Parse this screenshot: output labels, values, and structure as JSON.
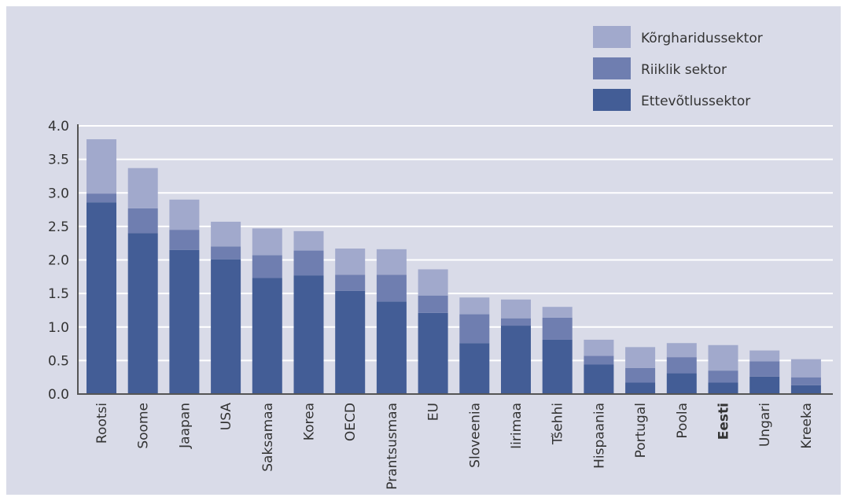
{
  "chart_data": {
    "type": "bar",
    "stacked": true,
    "categories": [
      "Rootsi",
      "Soome",
      "Jaapan",
      "USA",
      "Saksamaa",
      "Korea",
      "OECD",
      "Prantsusmaa",
      "EU",
      "Sloveenia",
      "Iirimaa",
      "Tšehhi",
      "Hispaania",
      "Portugal",
      "Poola",
      "Eesti",
      "Ungari",
      "Kreeka"
    ],
    "highlight_category": "Eesti",
    "series": [
      {
        "name": "Ettevõtlussektor",
        "color": "#435d96",
        "values": [
          2.86,
          2.4,
          2.15,
          2.01,
          1.73,
          1.77,
          1.54,
          1.38,
          1.21,
          0.76,
          1.02,
          0.81,
          0.44,
          0.17,
          0.31,
          0.17,
          0.26,
          0.13
        ]
      },
      {
        "name": "Riiklik sektor",
        "color": "#6f7eb0",
        "values": [
          0.13,
          0.37,
          0.3,
          0.19,
          0.34,
          0.37,
          0.24,
          0.4,
          0.26,
          0.43,
          0.11,
          0.33,
          0.13,
          0.22,
          0.24,
          0.18,
          0.23,
          0.12
        ]
      },
      {
        "name": "Kõrgharidussektor",
        "color": "#a1a9cc",
        "values": [
          0.81,
          0.6,
          0.45,
          0.37,
          0.4,
          0.29,
          0.39,
          0.38,
          0.39,
          0.25,
          0.28,
          0.16,
          0.24,
          0.31,
          0.21,
          0.38,
          0.16,
          0.27
        ]
      }
    ],
    "ylim": [
      0,
      4.0
    ],
    "yticks": [
      "0.0",
      "0.5",
      "1.0",
      "1.5",
      "2.0",
      "2.5",
      "3.0",
      "3.5",
      "4.0"
    ],
    "grid": true,
    "legend_position": "top-right",
    "legend_order": [
      "Kõrgharidussektor",
      "Riiklik sektor",
      "Ettevõtlussektor"
    ],
    "title": "",
    "xlabel": "",
    "ylabel": ""
  }
}
